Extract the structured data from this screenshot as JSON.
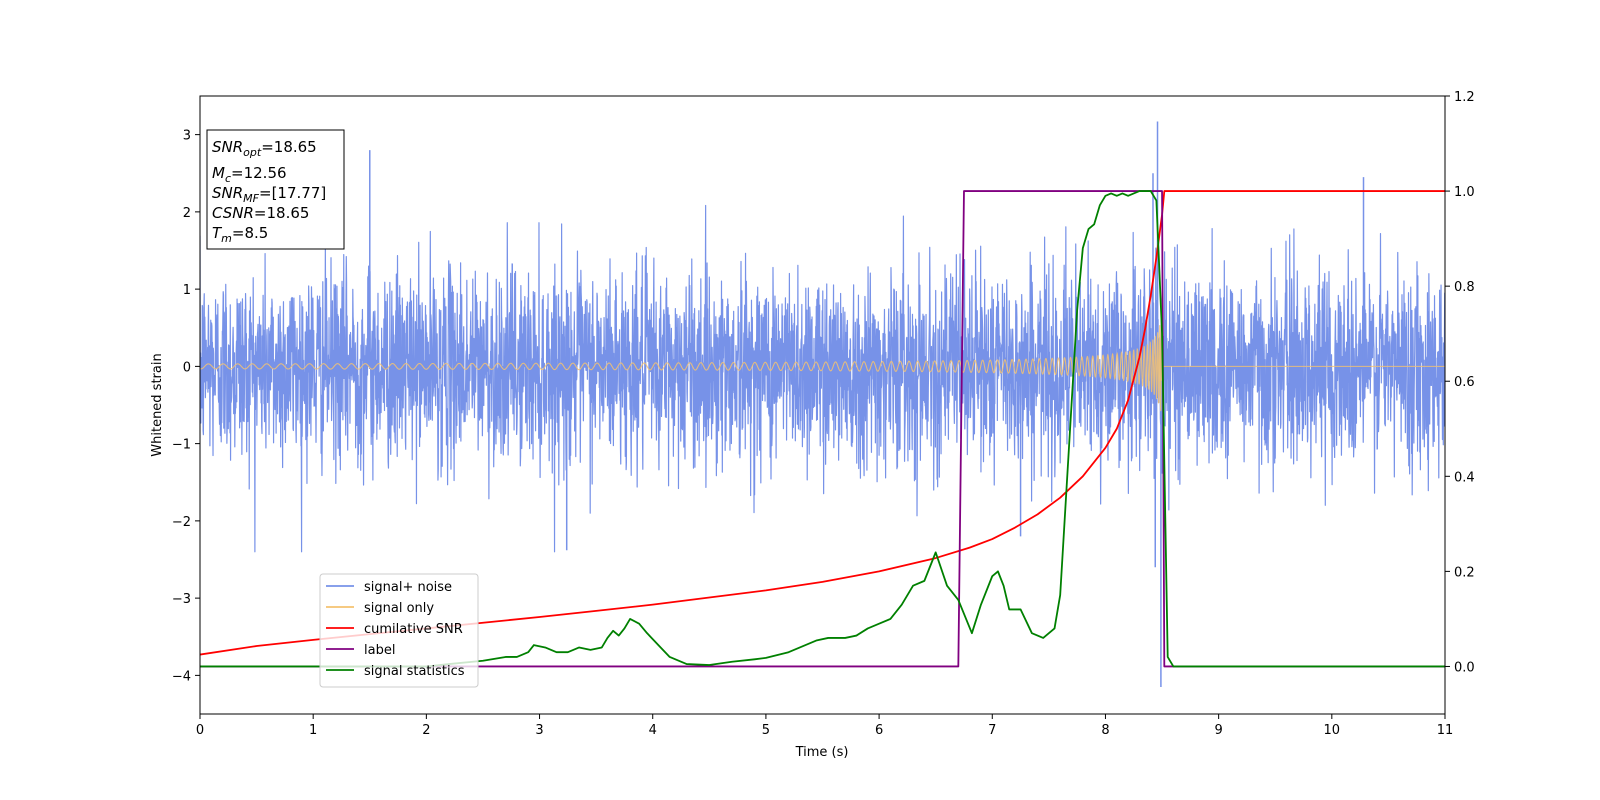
{
  "chart_data": {
    "type": "line",
    "title": "",
    "xlabel": "Time (s)",
    "ylabel": "Whitened strain",
    "xlim": [
      0,
      11
    ],
    "ylim": [
      -4.5,
      3.5
    ],
    "y2lim": [
      -0.1,
      1.2
    ],
    "xticks": [
      0,
      1,
      2,
      3,
      4,
      5,
      6,
      7,
      8,
      9,
      10,
      11
    ],
    "yticks": [
      -4,
      -3,
      -2,
      -1,
      0,
      1,
      2,
      3
    ],
    "y2ticks": [
      0.0,
      0.2,
      0.4,
      0.6,
      0.8,
      1.0,
      1.2
    ],
    "y2tick_labels": [
      "0.0",
      "0.2",
      "0.4",
      "0.6",
      "0.8",
      "1.0",
      "1.2"
    ],
    "grid": false,
    "legend_position": "lower-left",
    "info_box": {
      "snr_opt": {
        "main": "SNR",
        "sub": "opt",
        "value": "=18.65"
      },
      "mc": {
        "main": "M",
        "sub": "c",
        "value": "=12.56"
      },
      "snr_mf": {
        "main": "SNR",
        "sub": "MF",
        "value": "=[17.77]"
      },
      "csnr": {
        "main": "CSNR",
        "sub": "",
        "value": "=18.65"
      },
      "tm": {
        "main": "T",
        "sub": "m",
        "value": "=8.5"
      }
    },
    "series": [
      {
        "name": "signal+ noise",
        "axis": "left",
        "color": "#7792e8",
        "kind": "noise",
        "typical_std": 0.62,
        "min": -4.15,
        "max": 3.17,
        "spikes": [
          [
            1.5,
            2.8
          ],
          [
            3.24,
            -2.38
          ],
          [
            7.25,
            -2.2
          ],
          [
            8.42,
            2.5
          ],
          [
            8.44,
            -2.6
          ],
          [
            8.46,
            3.17
          ],
          [
            8.49,
            -4.15
          ],
          [
            10.28,
            2.45
          ]
        ]
      },
      {
        "name": "signal only",
        "axis": "left",
        "color": "#f5c270",
        "kind": "chirp",
        "merger_time": 8.5,
        "amplitude_at_merger": 0.72
      },
      {
        "name": "cumilative SNR",
        "axis": "right",
        "color": "#ff0000",
        "x": [
          0,
          0.5,
          1,
          1.5,
          2,
          2.5,
          3,
          3.5,
          4,
          4.5,
          5,
          5.5,
          6,
          6.5,
          6.8,
          7,
          7.2,
          7.4,
          7.6,
          7.8,
          8.0,
          8.1,
          8.2,
          8.3,
          8.35,
          8.4,
          8.45,
          8.5,
          8.52,
          11
        ],
        "y": [
          0.025,
          0.043,
          0.056,
          0.068,
          0.08,
          0.092,
          0.104,
          0.117,
          0.13,
          0.145,
          0.16,
          0.178,
          0.2,
          0.228,
          0.25,
          0.268,
          0.292,
          0.32,
          0.355,
          0.4,
          0.46,
          0.5,
          0.56,
          0.65,
          0.71,
          0.78,
          0.86,
          0.95,
          1.0,
          1.0
        ]
      },
      {
        "name": "label",
        "axis": "right",
        "color": "#800080",
        "x": [
          0,
          6.7,
          6.75,
          8.5,
          8.52,
          11
        ],
        "y": [
          0,
          0,
          1,
          1,
          0,
          0
        ]
      },
      {
        "name": "signal statistics",
        "axis": "right",
        "color": "#008000",
        "x": [
          0,
          0.5,
          1,
          1.5,
          2,
          2.2,
          2.5,
          2.7,
          2.8,
          2.9,
          2.95,
          3.05,
          3.15,
          3.25,
          3.35,
          3.45,
          3.55,
          3.6,
          3.65,
          3.7,
          3.75,
          3.8,
          3.88,
          3.95,
          4.05,
          4.15,
          4.3,
          4.5,
          4.7,
          4.9,
          5.0,
          5.2,
          5.35,
          5.45,
          5.55,
          5.7,
          5.8,
          5.9,
          6.0,
          6.1,
          6.2,
          6.3,
          6.4,
          6.5,
          6.6,
          6.7,
          6.82,
          6.9,
          7.0,
          7.05,
          7.1,
          7.15,
          7.25,
          7.35,
          7.45,
          7.55,
          7.6,
          7.65,
          7.7,
          7.75,
          7.8,
          7.85,
          7.9,
          7.95,
          8.0,
          8.05,
          8.1,
          8.15,
          8.2,
          8.3,
          8.4,
          8.45,
          8.5,
          8.55,
          8.6,
          9,
          11
        ],
        "y": [
          0.0,
          0.0,
          0.0,
          0.0,
          0.0,
          0.005,
          0.012,
          0.02,
          0.02,
          0.03,
          0.045,
          0.04,
          0.03,
          0.03,
          0.04,
          0.035,
          0.04,
          0.06,
          0.075,
          0.065,
          0.08,
          0.1,
          0.09,
          0.07,
          0.045,
          0.02,
          0.005,
          0.003,
          0.01,
          0.015,
          0.018,
          0.03,
          0.045,
          0.055,
          0.06,
          0.06,
          0.065,
          0.08,
          0.09,
          0.1,
          0.13,
          0.17,
          0.18,
          0.24,
          0.17,
          0.14,
          0.07,
          0.13,
          0.19,
          0.2,
          0.17,
          0.12,
          0.12,
          0.07,
          0.06,
          0.08,
          0.15,
          0.35,
          0.55,
          0.75,
          0.88,
          0.92,
          0.93,
          0.97,
          0.99,
          0.995,
          0.99,
          0.995,
          0.99,
          1.0,
          1.0,
          0.98,
          0.7,
          0.02,
          0.0,
          0.0,
          0.0
        ]
      }
    ]
  }
}
